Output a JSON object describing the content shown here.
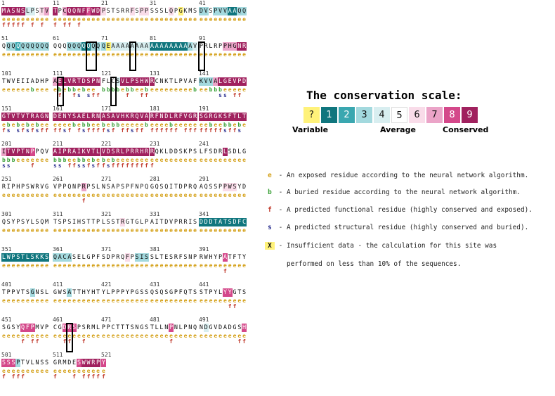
{
  "colors": {
    "c1": "#10767e",
    "c2": "#3aa7b0",
    "c3": "#a3d9de",
    "c4": "#d8eef0",
    "c5": "#ffffff",
    "c6": "#f9dce9",
    "c7": "#eba4c8",
    "c8": "#d4488a",
    "c9": "#a0215e",
    "cx": "#fff27a",
    "exposed": "#d4a017",
    "buried": "#3aa037",
    "functional": "#c0392b",
    "structural": "#2a2f8f"
  },
  "scale": {
    "title": "The conservation scale:",
    "cells": [
      {
        "label": "?",
        "key": "cx"
      },
      {
        "label": "1",
        "key": "c1"
      },
      {
        "label": "2",
        "key": "c2"
      },
      {
        "label": "3",
        "key": "c3"
      },
      {
        "label": "4",
        "key": "c4"
      },
      {
        "label": "5",
        "key": "c5"
      },
      {
        "label": "6",
        "key": "c6"
      },
      {
        "label": "7",
        "key": "c7"
      },
      {
        "label": "8",
        "key": "c8"
      },
      {
        "label": "9",
        "key": "c9"
      }
    ],
    "variable_label": "Variable",
    "average_label": "Average",
    "conserved_label": "Conserved"
  },
  "legend": [
    {
      "key": "e",
      "text": "- An exposed residue according to the neural network algorithm."
    },
    {
      "key": "b",
      "text": "- A buried residue according to the neural network algorithm."
    },
    {
      "key": "f",
      "text": "- A predicted functional residue (highly conserved and exposed)."
    },
    {
      "key": "s",
      "text": "- A predicted structural residue (highly conserved and buried)."
    },
    {
      "key": "X",
      "text": "- Insufficient data - the calculation for this site was"
    },
    {
      "key": "",
      "text": "performed on less than 10% of the sequences."
    }
  ],
  "blocks": [
    {
      "pos": "1",
      "seq": "MASNSLPSTV",
      "cons": "9999944567",
      "be": "eeeeeeeeee",
      "fs": "fffff f f "
    },
    {
      "pos": "11",
      "seq": "TPCQQNFFWD",
      "cons": "9579999899",
      "be": "eeeeeeeeee",
      "fs": "f ff f    "
    },
    {
      "pos": "21",
      "seq": "PSTSRRFSPP",
      "cons": "6555556566",
      "be": "eeeeeeeeee",
      "fs": "          "
    },
    {
      "pos": "31",
      "seq": "SSSLQPGKMS",
      "cons": "555565x555",
      "be": "eeeeeeeeee",
      "fs": "          "
    },
    {
      "pos": "41",
      "seq": "DVSPVVAAQQ",
      "cons": "3353331133",
      "be": "eeeeeeeeee",
      "fs": "          "
    },
    {
      "pos": "51",
      "seq": "QQQQQQQQQQ",
      "cons": "5332333333",
      "be": "eeeeeeeeee",
      "fs": "          "
    },
    {
      "pos": "61",
      "seq": "QQQQQQQQQQ",
      "cons": "5553331133",
      "be": "eeeeeeeeee",
      "fs": "          "
    },
    {
      "pos": "71",
      "seq": "QEAAAAAAAA",
      "cons": "3x44444444",
      "be": "eeeeeeeeee",
      "fs": "          "
    },
    {
      "pos": "81",
      "seq": "AAAAAAAAAV",
      "cons": "1111111134",
      "be": "eeeeeeeeee",
      "fs": "          "
    },
    {
      "pos": "91",
      "seq": "PRLRPPHGNR",
      "cons": "5555577799",
      "be": "eeeeeeeeee",
      "fs": "          "
    },
    {
      "pos": "101",
      "seq": "TWVEIIADHP",
      "cons": "5555555555",
      "be": "eeeeeebeee",
      "fs": "          "
    },
    {
      "pos": "111",
      "seq": "AELVRTDSPN",
      "cons": "7999999999",
      "be": "ebebbebee ",
      "fs": " f  fs sff"
    },
    {
      "pos": "121",
      "seq": "FLCSVLPSHW",
      "cons": "5554999999",
      "be": "bbbbebbeeb",
      "fs": "     f  ff"
    },
    {
      "pos": "131",
      "seq": "RCNKTLPVAF",
      "cons": "9555555555",
      "be": "eeeeeeeeeb",
      "fs": "          "
    },
    {
      "pos": "141",
      "seq": "KVVALGEVPD",
      "cons": "3337999999",
      "be": "eebbbeeeee",
      "fs": "    ss ff "
    },
    {
      "pos": "151",
      "seq": "GTVTVTRAGN",
      "cons": "9999999999",
      "be": "ebebebebee",
      "fs": "fs sfsfsff"
    },
    {
      "pos": "161",
      "seq": "DENYSAELRN",
      "cons": "9999999999",
      "be": "eeeebebbee",
      "fs": "ffsf fsfff"
    },
    {
      "pos": "171",
      "seq": "ASAVHKRQVA",
      "cons": "9999999999",
      "be": "bebbeeeeeb",
      "fs": "fsf ffsff "
    },
    {
      "pos": "181",
      "seq": "RFNDLRFVGR",
      "cons": "9999999999",
      "be": "eeeebeeeee",
      "fs": "ffffff fff"
    },
    {
      "pos": "191",
      "seq": "SGRGKSFTLT",
      "cons": "9999999999",
      "be": "eebeebbebe",
      "fs": "fffffsffs "
    },
    {
      "pos": "201",
      "seq": "ITVPTNPPQV",
      "cons": "7999998555",
      "be": "bbbeeeeeee",
      "fs": "ss    f   "
    },
    {
      "pos": "211",
      "seq": "AIPRAIKVTL",
      "cons": "9999999999",
      "be": "bbbeebbebe",
      "fs": "ss ffssfsf"
    },
    {
      "pos": "221",
      "seq": "VDSRLPRRHR",
      "cons": "9999999999",
      "be": "bebeeeeeee",
      "fs": "fsffffffff"
    },
    {
      "pos": "231",
      "seq": "RQKLDDSKPS",
      "cons": "9555555555",
      "be": "eeeeeeeeee",
      "fs": "f         "
    },
    {
      "pos": "241",
      "seq": "LFSDRLSDLG",
      "cons": "5555595555",
      "be": "eeeeeeeeee",
      "fs": "          "
    },
    {
      "pos": "251",
      "seq": "RIPHPSWRVG",
      "cons": "5555555555",
      "be": "eeeeeeeeee",
      "fs": "          "
    },
    {
      "pos": "261",
      "seq": "VPPQNPRPSL",
      "cons": "5555557555",
      "be": "eeeeeeeeee",
      "fs": "      f   "
    },
    {
      "pos": "271",
      "seq": "NSAPSPFNPQ",
      "cons": "5555555555",
      "be": "eeeeeeeeee",
      "fs": "          "
    },
    {
      "pos": "281",
      "seq": "GQSQITDPRQ",
      "cons": "5555555555",
      "be": "eeeeeeeeee",
      "fs": "          "
    },
    {
      "pos": "291",
      "seq": "AQSSPPWSYD",
      "cons": "5555566655",
      "be": "eeeeeeeeee",
      "fs": "          "
    },
    {
      "pos": "301",
      "seq": "QSYPSYLSQM",
      "cons": "5555555555",
      "be": "eeeeeeeeee",
      "fs": "          "
    },
    {
      "pos": "311",
      "seq": "TSPSIHSTTP",
      "cons": "5555555555",
      "be": "eeeeeeeeee",
      "fs": "          "
    },
    {
      "pos": "321",
      "seq": "LSSTRGTGLP",
      "cons": "5555655555",
      "be": "eeeeeeeeee",
      "fs": "          "
    },
    {
      "pos": "331",
      "seq": "AITDVPRRIS",
      "cons": "5555555555",
      "be": "eeeeeeeeee",
      "fs": "          "
    },
    {
      "pos": "341",
      "seq": "DDDTATSDFC",
      "cons": "1111111111",
      "be": "eeeeeeeeee",
      "fs": "          "
    },
    {
      "pos": "351",
      "seq": "LWPSTLSKKS",
      "cons": "1111111111",
      "be": "eeeeeeeeee",
      "fs": "          "
    },
    {
      "pos": "361",
      "seq": "QACASELGPF",
      "cons": "3333555555",
      "be": "eeeeeeeeee",
      "fs": "          "
    },
    {
      "pos": "371",
      "seq": "SDPRQFPSIS",
      "cons": "5555565333",
      "be": "eeeeeeeeee",
      "fs": "          "
    },
    {
      "pos": "381",
      "seq": "SLTESRFSNP",
      "cons": "5555555555",
      "be": "eeeeeeeeee",
      "fs": "          "
    },
    {
      "pos": "391",
      "seq": "RWHYPATFTY",
      "cons": "5555585555",
      "be": "eeeeeeeeee",
      "fs": "     f    "
    },
    {
      "pos": "401",
      "seq": "TPPVTSGNSL",
      "cons": "5555553555",
      "be": "eeeeeeeeee",
      "fs": "          "
    },
    {
      "pos": "411",
      "seq": "GWSATTHYHT",
      "cons": "5553555555",
      "be": "eeeeeeeeee",
      "fs": "          "
    },
    {
      "pos": "421",
      "seq": "YLPPPYPGSS",
      "cons": "5555555555",
      "be": "eeeeeeeeee",
      "fs": "          "
    },
    {
      "pos": "431",
      "seq": "QSQSGPFQTS",
      "cons": "5555555555",
      "be": "eeeeeeeeee",
      "fs": "          "
    },
    {
      "pos": "441",
      "seq": "STPYLYYGTS",
      "cons": "5555588555",
      "be": "eeeeeeeeee",
      "fs": "      ff  "
    },
    {
      "pos": "451",
      "seq": "SGSYQFPMVP",
      "cons": "5555888555",
      "be": "eeeeeeeeee",
      "fs": "    f ff  "
    },
    {
      "pos": "461",
      "seq": "CGDRSPSRML",
      "cons": "5588855555",
      "be": "eeeeeeeeee",
      "fs": "  ff  f   "
    },
    {
      "pos": "471",
      "seq": "PPCTTTSNGS",
      "cons": "5555555555",
      "be": "eeeeeeeeee",
      "fs": "          "
    },
    {
      "pos": "481",
      "seq": "TLLNPNLPNQ",
      "cons": "5555855555",
      "be": "eeeeeeeeee",
      "fs": "    f     "
    },
    {
      "pos": "491",
      "seq": "NDGVDADGSH",
      "cons": "5455555558",
      "be": "eeeeeeeeee",
      "fs": "        ff"
    },
    {
      "pos": "501",
      "seq": "SSSPTVLNSS",
      "cons": "8883555555",
      "be": "eeeeeeeeee",
      "fs": "f fff     "
    },
    {
      "pos": "511",
      "seq": "GRMDESWWRP",
      "cons": "5555589999",
      "be": "eeeeeeeeee",
      "fs": "f   f ffff"
    },
    {
      "pos": "521",
      "seq": "Y",
      "cons": "8",
      "be": "e",
      "fs": "f"
    }
  ],
  "boxes": [
    {
      "block": 6,
      "i0": 7,
      "i1": 8
    },
    {
      "block": 7,
      "i0": 6,
      "i1": 6
    },
    {
      "block": 9,
      "i0": 0,
      "i1": 0
    },
    {
      "block": 11,
      "i0": 1,
      "i1": 1
    },
    {
      "block": 12,
      "i0": 2,
      "i1": 2
    },
    {
      "block": 46,
      "i0": 3,
      "i1": 3
    }
  ]
}
